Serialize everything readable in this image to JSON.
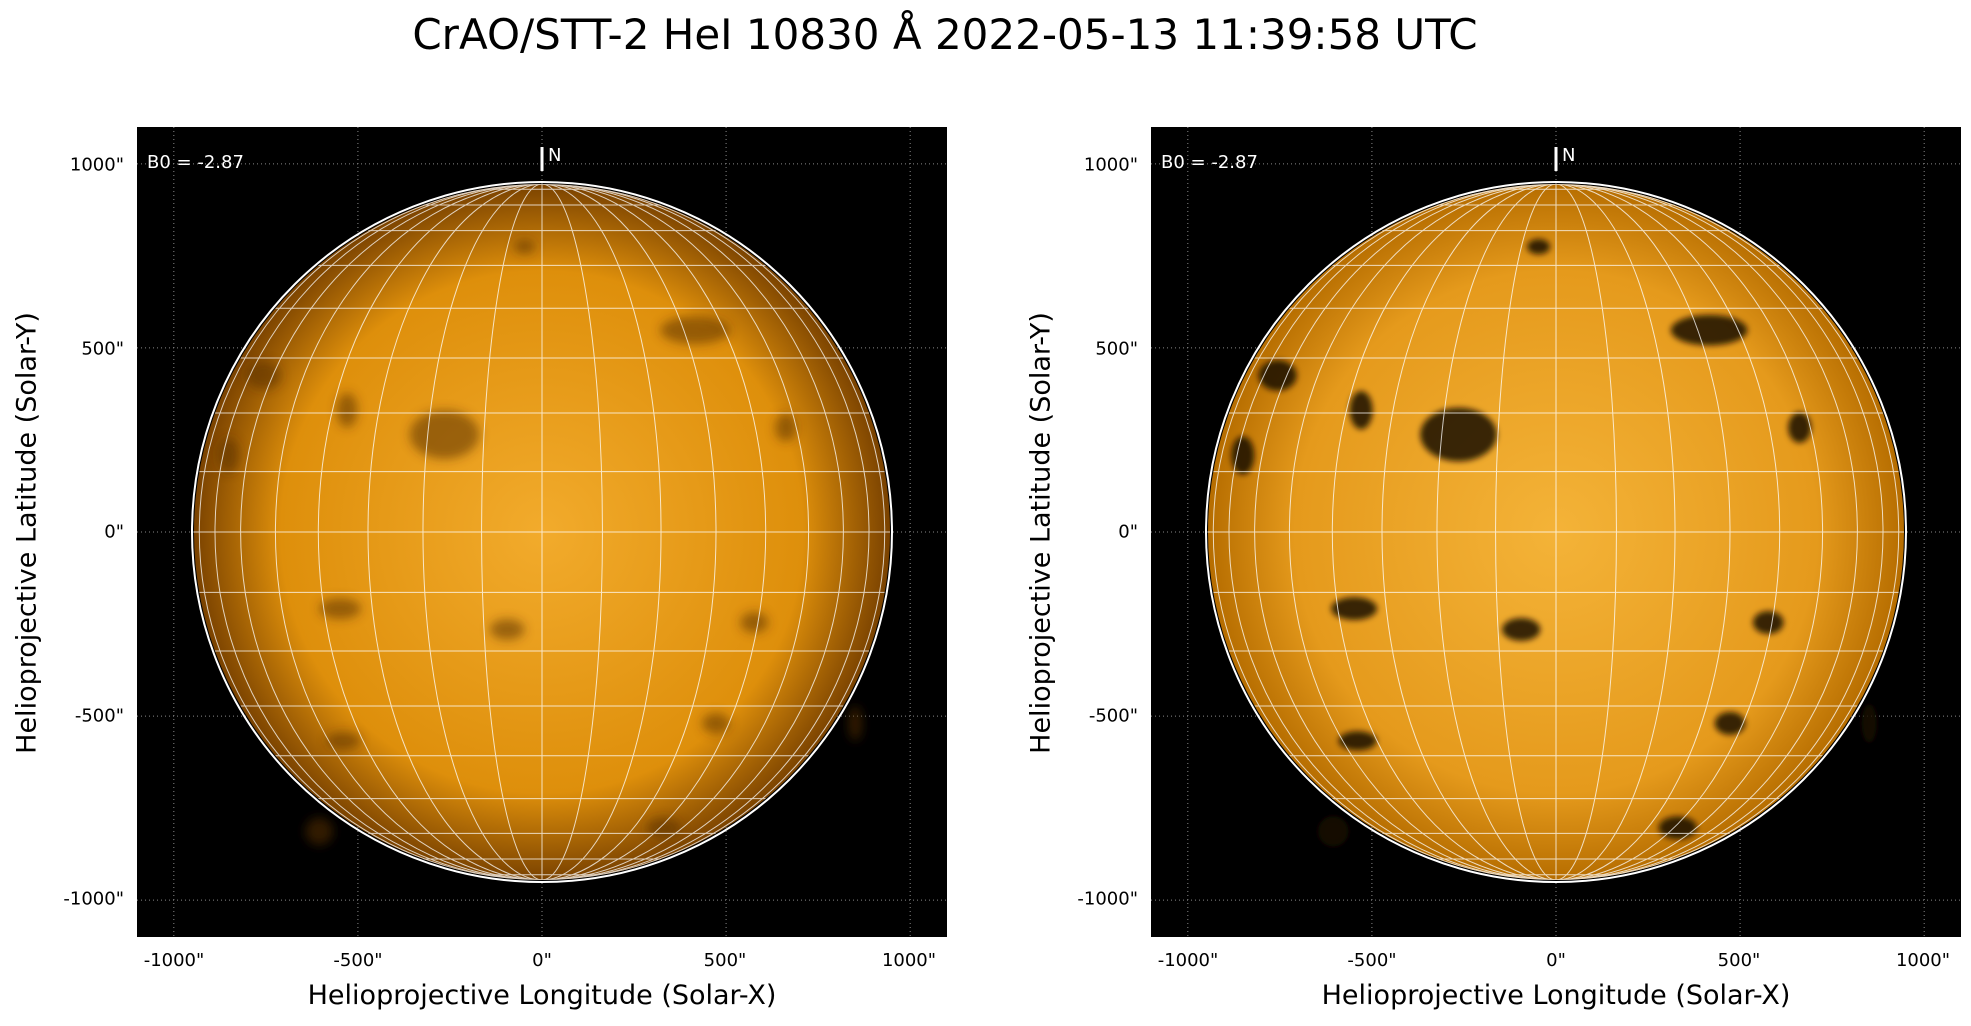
{
  "title": "CrAO/STT-2 HeI 10830 Å 2022-05-13 11:39:58 UTC",
  "colors": {
    "disk_bright": "#f2ab2c",
    "disk_mid": "#de8f0b",
    "disk_limb": "#7a4200",
    "grid": "#ffffff",
    "background": "#000000"
  },
  "panels": [
    {
      "ylabel": "Helioprojective Latitude (Solar-Y)",
      "xlabel": "Helioprojective Longitude (Solar-X)",
      "b0_label": "B0 = -2.87",
      "north_label": "N",
      "xticks": [
        "-1000\"",
        "-500\"",
        "0\"",
        "500\"",
        "1000\""
      ],
      "yticks": [
        "1000\"",
        "500\"",
        "0\"",
        "-500\"",
        "-1000\""
      ],
      "variant": "raw"
    },
    {
      "ylabel": "Helioprojective Latitude (Solar-Y)",
      "xlabel": "Helioprojective Longitude (Solar-X)",
      "b0_label": "B0 = -2.87",
      "north_label": "N",
      "xticks": [
        "-1000\"",
        "-500\"",
        "0\"",
        "500\"",
        "1000\""
      ],
      "yticks": [
        "1000\"",
        "500\"",
        "0\"",
        "-500\"",
        "-1000\""
      ],
      "variant": "enhanced"
    }
  ]
}
